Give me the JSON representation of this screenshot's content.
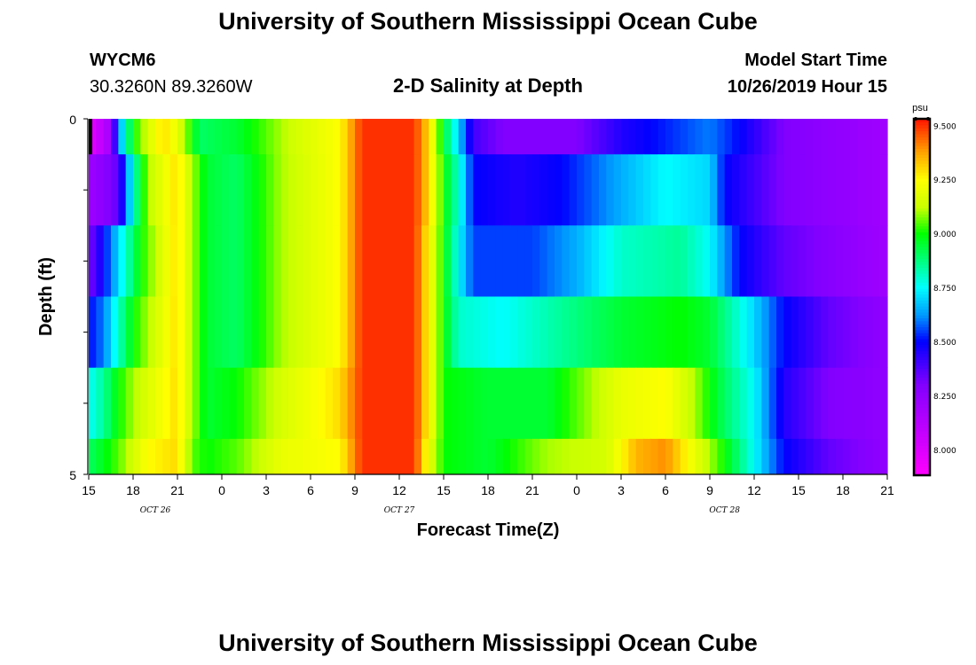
{
  "page": {
    "title": "University of Southern Mississippi Ocean Cube",
    "footer_title": "University of Southern Mississippi Ocean Cube",
    "station_id": "WYCM6",
    "station_coords": "30.3260N 89.3260W",
    "plot_name": "2-D Salinity at Depth",
    "model_start_label": "Model Start Time",
    "model_start_value": "10/26/2019 Hour 15"
  },
  "chart_data": {
    "type": "heatmap",
    "title": "2-D Salinity at Depth",
    "xlabel": "Forecast Time(Z)",
    "ylabel": "Depth (ft)",
    "x_tick_labels": [
      "15",
      "18",
      "21",
      "0",
      "3",
      "6",
      "9",
      "12",
      "15",
      "18",
      "21",
      "0",
      "3",
      "6",
      "9",
      "12",
      "15",
      "18",
      "21"
    ],
    "x_date_labels": [
      {
        "label": "OCT 26",
        "hour_index": 4.5
      },
      {
        "label": "OCT 27",
        "hour_index": 21
      },
      {
        "label": "OCT 28",
        "hour_index": 43
      }
    ],
    "y_tick_labels": [
      "0",
      "5"
    ],
    "ylim": [
      0,
      5
    ],
    "x_range_hours": [
      0,
      54
    ],
    "colorbar": {
      "unit": "psu",
      "range": [
        7.88,
        9.53
      ],
      "tick_labels": [
        "9.500",
        "9.250",
        "9.000",
        "8.750",
        "8.500",
        "8.250",
        "8.000"
      ],
      "tick_values": [
        9.5,
        9.25,
        9.0,
        8.75,
        8.5,
        8.25,
        8.0
      ]
    },
    "depth_layers": [
      "0-0.5",
      "0.5-1.5",
      "1.5-2.5",
      "2.5-3.5",
      "3.5-4.5",
      "4.5-5"
    ],
    "series": [
      {
        "name": "layer-0",
        "knots": [
          [
            0,
            7.95
          ],
          [
            1.5,
            8.2
          ],
          [
            2,
            8.6
          ],
          [
            3,
            9.0
          ],
          [
            5,
            9.3
          ],
          [
            6,
            9.2
          ],
          [
            7.5,
            8.9
          ],
          [
            10,
            8.95
          ],
          [
            14,
            9.15
          ],
          [
            17,
            9.25
          ],
          [
            18.5,
            9.5
          ],
          [
            22,
            9.5
          ],
          [
            23,
            9.3
          ],
          [
            24,
            8.95
          ],
          [
            25,
            8.7
          ],
          [
            26,
            8.4
          ],
          [
            28,
            8.3
          ],
          [
            33,
            8.3
          ],
          [
            36,
            8.45
          ],
          [
            40,
            8.55
          ],
          [
            42,
            8.6
          ],
          [
            44,
            8.5
          ],
          [
            47,
            8.3
          ],
          [
            54,
            8.2
          ]
        ]
      },
      {
        "name": "layer-1",
        "knots": [
          [
            0,
            8.2
          ],
          [
            2,
            8.35
          ],
          [
            3,
            8.8
          ],
          [
            4,
            9.1
          ],
          [
            6,
            9.3
          ],
          [
            7,
            9.1
          ],
          [
            8,
            8.95
          ],
          [
            10,
            8.9
          ],
          [
            13,
            9.1
          ],
          [
            17,
            9.25
          ],
          [
            18.5,
            9.5
          ],
          [
            22,
            9.5
          ],
          [
            23,
            9.3
          ],
          [
            24,
            9.0
          ],
          [
            25,
            8.8
          ],
          [
            26,
            8.5
          ],
          [
            29,
            8.45
          ],
          [
            32,
            8.5
          ],
          [
            36,
            8.65
          ],
          [
            39,
            8.75
          ],
          [
            42,
            8.7
          ],
          [
            43,
            8.5
          ],
          [
            47,
            8.3
          ],
          [
            54,
            8.2
          ]
        ]
      },
      {
        "name": "layer-2",
        "knots": [
          [
            0,
            8.3
          ],
          [
            1,
            8.5
          ],
          [
            2.5,
            8.8
          ],
          [
            3.5,
            9.0
          ],
          [
            6,
            9.3
          ],
          [
            7,
            9.1
          ],
          [
            8,
            8.95
          ],
          [
            10,
            8.9
          ],
          [
            13,
            9.1
          ],
          [
            17,
            9.25
          ],
          [
            18.5,
            9.5
          ],
          [
            22,
            9.5
          ],
          [
            23,
            9.25
          ],
          [
            24,
            9.0
          ],
          [
            25,
            8.75
          ],
          [
            26,
            8.55
          ],
          [
            30,
            8.55
          ],
          [
            33,
            8.65
          ],
          [
            36,
            8.8
          ],
          [
            40,
            8.85
          ],
          [
            42,
            8.75
          ],
          [
            44,
            8.5
          ],
          [
            47,
            8.35
          ],
          [
            54,
            8.2
          ]
        ]
      },
      {
        "name": "layer-3",
        "knots": [
          [
            0,
            8.5
          ],
          [
            1,
            8.6
          ],
          [
            2,
            8.8
          ],
          [
            3,
            9.0
          ],
          [
            6,
            9.3
          ],
          [
            7,
            9.1
          ],
          [
            8,
            8.95
          ],
          [
            10,
            8.9
          ],
          [
            13,
            9.1
          ],
          [
            17,
            9.25
          ],
          [
            18.5,
            9.5
          ],
          [
            22,
            9.5
          ],
          [
            23,
            9.25
          ],
          [
            24,
            9.0
          ],
          [
            25,
            8.8
          ],
          [
            28,
            8.75
          ],
          [
            32,
            8.85
          ],
          [
            36,
            8.95
          ],
          [
            40,
            9.0
          ],
          [
            42,
            8.95
          ],
          [
            45,
            8.7
          ],
          [
            47,
            8.5
          ],
          [
            50,
            8.35
          ],
          [
            54,
            8.25
          ]
        ]
      },
      {
        "name": "layer-4",
        "knots": [
          [
            0,
            8.75
          ],
          [
            1,
            8.85
          ],
          [
            2,
            9.0
          ],
          [
            3,
            9.1
          ],
          [
            6,
            9.3
          ],
          [
            7,
            9.1
          ],
          [
            8,
            8.95
          ],
          [
            10,
            9.0
          ],
          [
            13,
            9.15
          ],
          [
            17,
            9.3
          ],
          [
            18.5,
            9.5
          ],
          [
            22,
            9.5
          ],
          [
            23,
            9.25
          ],
          [
            24,
            9.0
          ],
          [
            27,
            8.95
          ],
          [
            31,
            8.95
          ],
          [
            33,
            9.05
          ],
          [
            36,
            9.2
          ],
          [
            39,
            9.25
          ],
          [
            41,
            9.1
          ],
          [
            43,
            8.9
          ],
          [
            45,
            8.75
          ],
          [
            47,
            8.45
          ],
          [
            50,
            8.3
          ],
          [
            54,
            8.25
          ]
        ]
      },
      {
        "name": "layer-5",
        "knots": [
          [
            0,
            8.9
          ],
          [
            2,
            9.05
          ],
          [
            4,
            9.25
          ],
          [
            6,
            9.3
          ],
          [
            7,
            9.05
          ],
          [
            8,
            9.0
          ],
          [
            10,
            9.05
          ],
          [
            13,
            9.2
          ],
          [
            17,
            9.25
          ],
          [
            18.5,
            9.5
          ],
          [
            22,
            9.5
          ],
          [
            23,
            9.2
          ],
          [
            24,
            9.0
          ],
          [
            27,
            8.95
          ],
          [
            31,
            9.1
          ],
          [
            35,
            9.15
          ],
          [
            37,
            9.35
          ],
          [
            39,
            9.4
          ],
          [
            41,
            9.2
          ],
          [
            43,
            9.0
          ],
          [
            45,
            8.75
          ],
          [
            47,
            8.5
          ],
          [
            50,
            8.35
          ],
          [
            54,
            8.25
          ]
        ]
      }
    ]
  }
}
